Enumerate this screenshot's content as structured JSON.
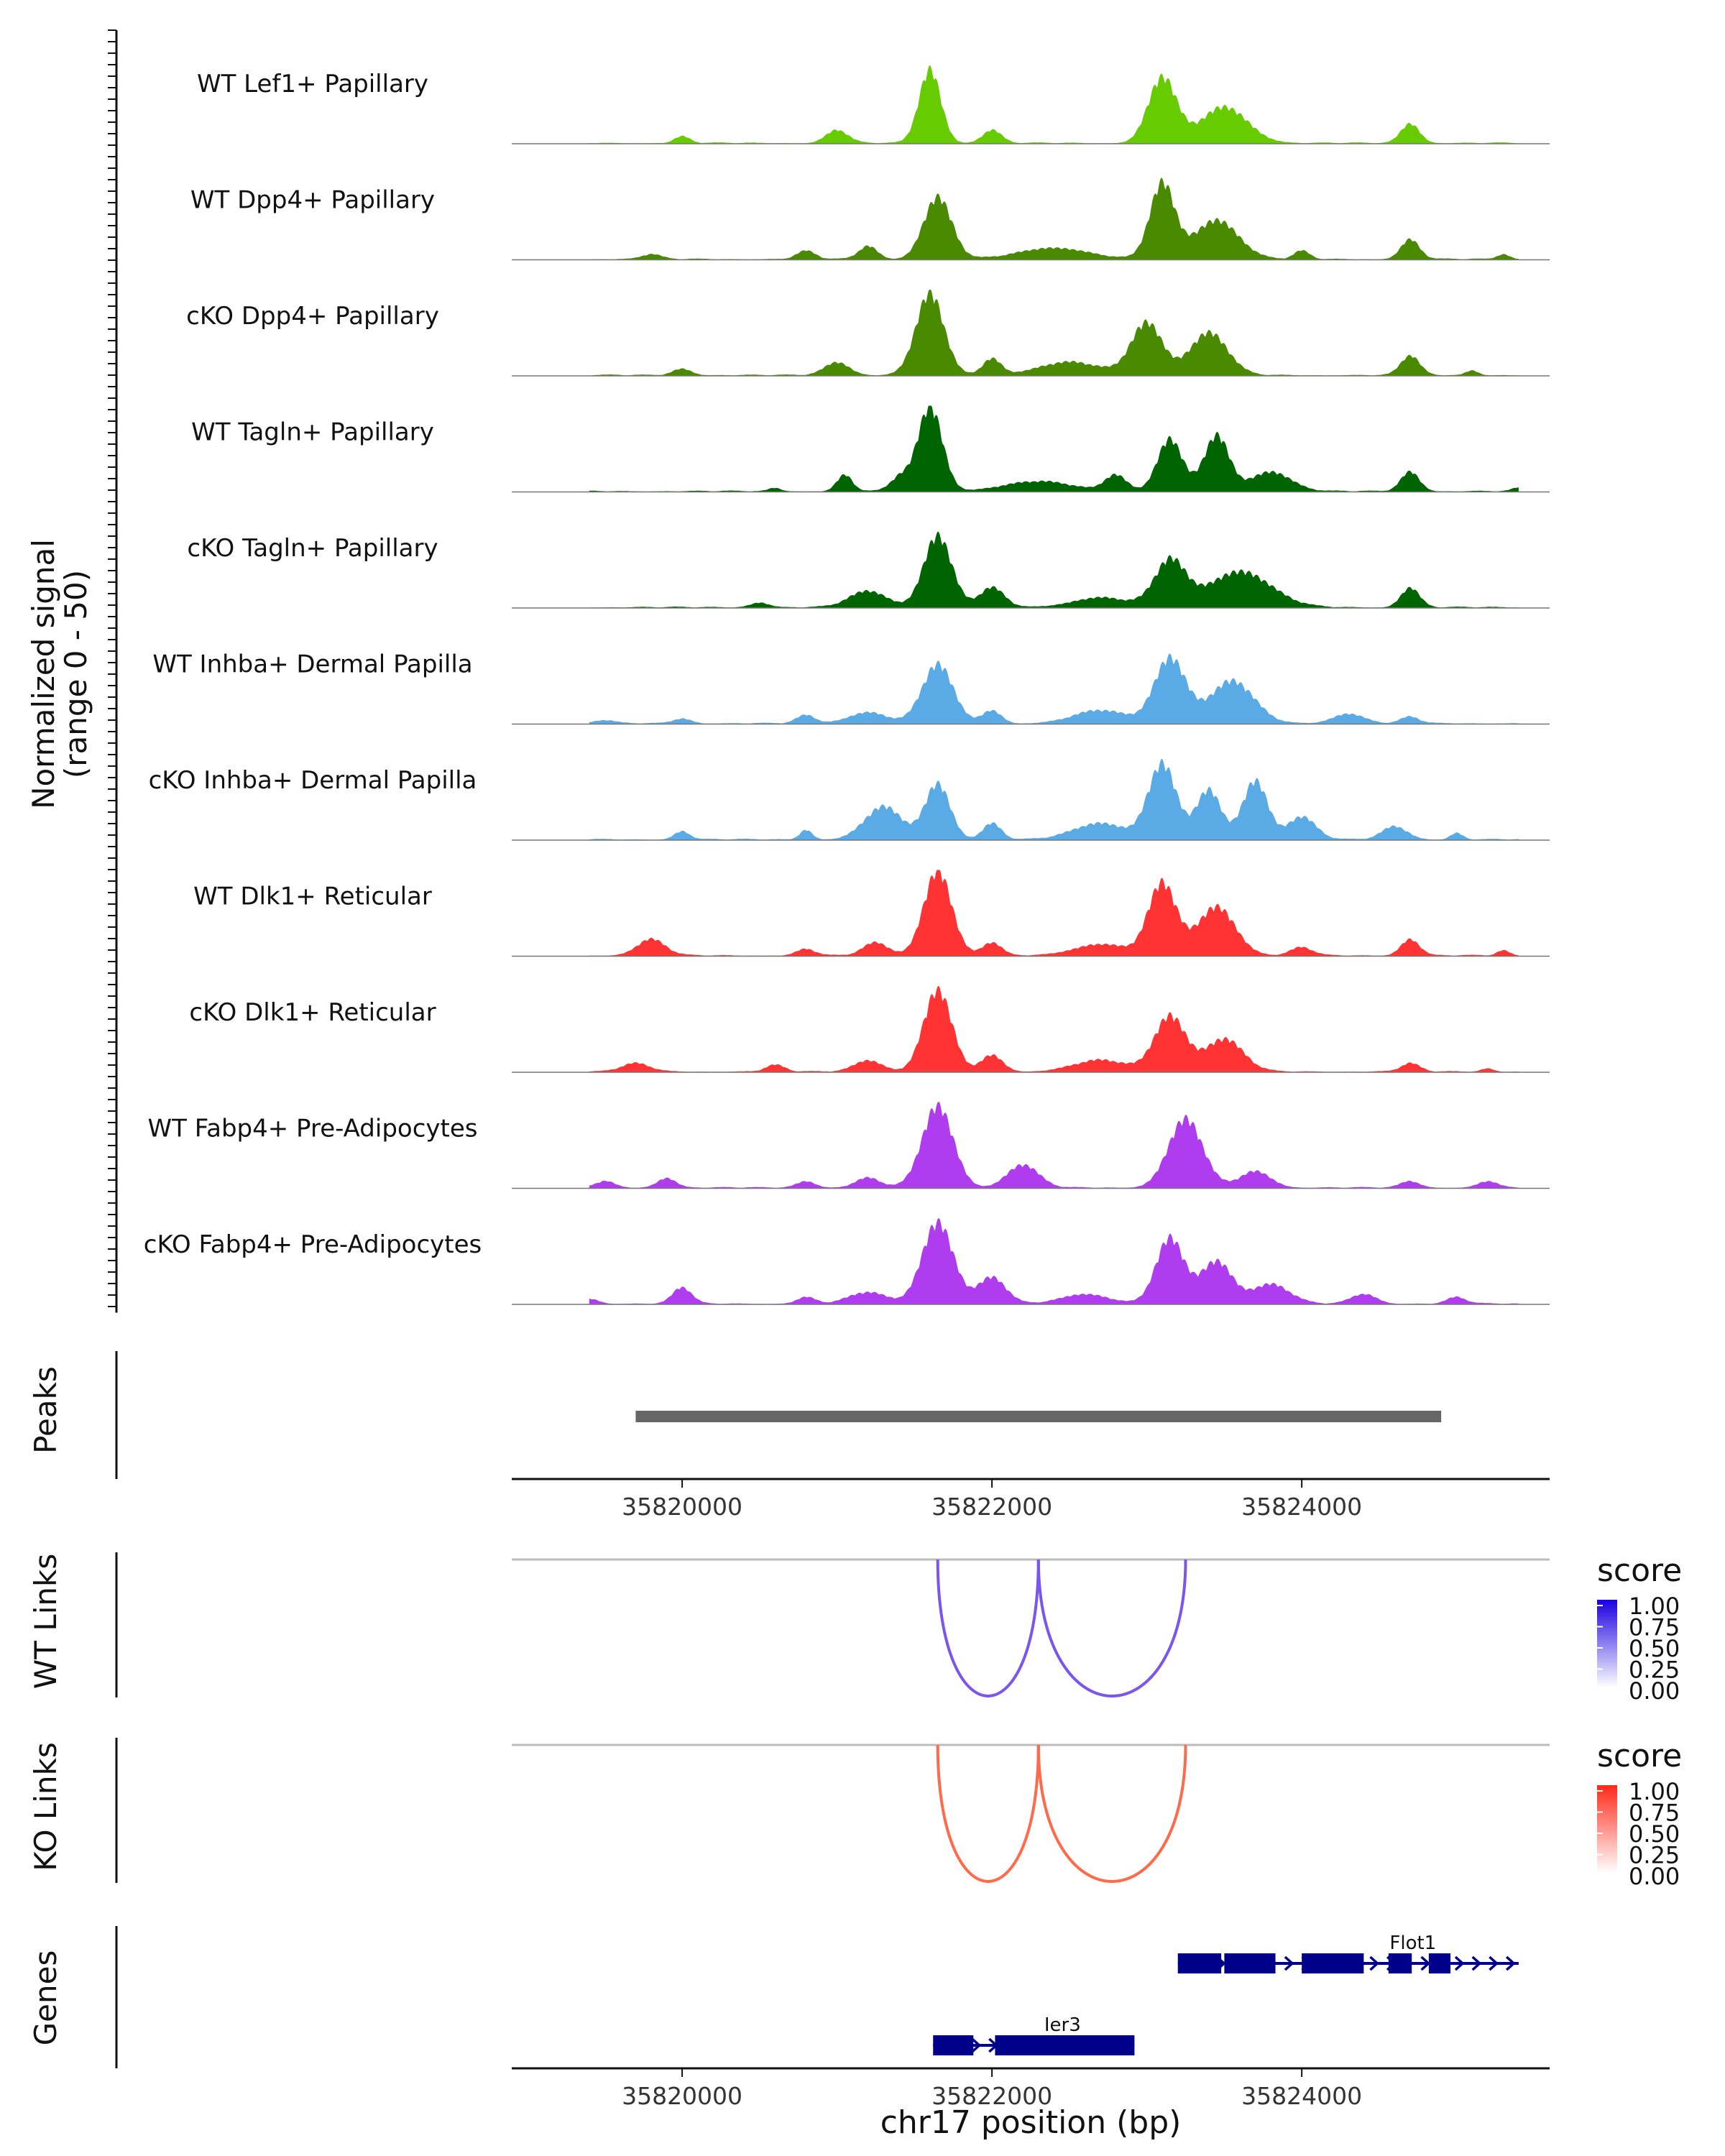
{
  "chart_data": {
    "type": "area",
    "title": "",
    "region": "chr17:35818900-35825600",
    "xlim": [
      35818900,
      35825600
    ],
    "xticks": [
      35820000,
      35822000,
      35824000
    ],
    "xlabel": "chr17 position (bp)",
    "coverage": {
      "ylabel_line1": "Normalized signal",
      "ylabel_line2": "(range 0 - 50)",
      "ylim": [
        0,
        50
      ],
      "tracks": [
        {
          "name": "WT Lef1+ Papillary",
          "color": "#66cc00",
          "peaks": [
            [
              35820000,
              4,
              50
            ],
            [
              35821000,
              8,
              70
            ],
            [
              35821600,
              45,
              70
            ],
            [
              35822000,
              8,
              60
            ],
            [
              35823100,
              40,
              90
            ],
            [
              35823500,
              22,
              150
            ],
            [
              35824700,
              12,
              60
            ]
          ]
        },
        {
          "name": "WT Dpp4+ Papillary",
          "color": "#4a8a00",
          "peaks": [
            [
              35819800,
              3,
              60
            ],
            [
              35820800,
              5,
              60
            ],
            [
              35821200,
              8,
              60
            ],
            [
              35821650,
              38,
              90
            ],
            [
              35822400,
              7,
              220
            ],
            [
              35823100,
              46,
              80
            ],
            [
              35823450,
              24,
              140
            ],
            [
              35824000,
              5,
              50
            ],
            [
              35824700,
              12,
              60
            ],
            [
              35825300,
              3,
              40
            ]
          ]
        },
        {
          "name": "cKO Dpp4+ Papillary",
          "color": "#4a8a00",
          "peaks": [
            [
              35820000,
              4,
              60
            ],
            [
              35821000,
              8,
              80
            ],
            [
              35821600,
              50,
              90
            ],
            [
              35822000,
              10,
              60
            ],
            [
              35822500,
              8,
              200
            ],
            [
              35823000,
              32,
              100
            ],
            [
              35823400,
              26,
              120
            ],
            [
              35824700,
              12,
              60
            ],
            [
              35825100,
              3,
              40
            ]
          ]
        },
        {
          "name": "WT Tagln+ Papillary",
          "color": "#006400",
          "peaks": [
            [
              35820600,
              2,
              40
            ],
            [
              35821050,
              10,
              50
            ],
            [
              35821400,
              8,
              60
            ],
            [
              35821600,
              52,
              80
            ],
            [
              35822300,
              6,
              220
            ],
            [
              35822800,
              10,
              70
            ],
            [
              35823150,
              32,
              80
            ],
            [
              35823450,
              34,
              80
            ],
            [
              35823800,
              12,
              130
            ],
            [
              35824700,
              12,
              60
            ],
            [
              35825400,
              2,
              40
            ]
          ]
        },
        {
          "name": "cKO Tagln+ Papillary",
          "color": "#006400",
          "peaks": [
            [
              35820500,
              3,
              60
            ],
            [
              35821200,
              10,
              120
            ],
            [
              35821650,
              44,
              90
            ],
            [
              35822000,
              12,
              80
            ],
            [
              35822700,
              6,
              180
            ],
            [
              35823150,
              28,
              100
            ],
            [
              35823600,
              22,
              200
            ],
            [
              35824700,
              12,
              60
            ]
          ]
        },
        {
          "name": "WT Inhba+ Dermal Papilla",
          "color": "#5aaae6",
          "peaks": [
            [
              35819500,
              2,
              60
            ],
            [
              35820000,
              3,
              60
            ],
            [
              35820800,
              5,
              60
            ],
            [
              35821200,
              7,
              120
            ],
            [
              35821650,
              36,
              100
            ],
            [
              35822000,
              8,
              60
            ],
            [
              35822700,
              8,
              170
            ],
            [
              35823150,
              40,
              100
            ],
            [
              35823550,
              26,
              140
            ],
            [
              35824300,
              6,
              100
            ],
            [
              35824700,
              4,
              60
            ]
          ]
        },
        {
          "name": "cKO Inhba+ Dermal Papilla",
          "color": "#5aaae6",
          "peaks": [
            [
              35820000,
              5,
              50
            ],
            [
              35820800,
              6,
              40
            ],
            [
              35821300,
              20,
              120
            ],
            [
              35821650,
              34,
              80
            ],
            [
              35822000,
              10,
              60
            ],
            [
              35822700,
              10,
              170
            ],
            [
              35823100,
              46,
              90
            ],
            [
              35823400,
              30,
              80
            ],
            [
              35823700,
              36,
              80
            ],
            [
              35824000,
              14,
              90
            ],
            [
              35824600,
              8,
              80
            ],
            [
              35825000,
              4,
              40
            ]
          ]
        },
        {
          "name": "WT Dlk1+ Reticular",
          "color": "#ff3333",
          "peaks": [
            [
              35819800,
              10,
              90
            ],
            [
              35820800,
              4,
              60
            ],
            [
              35821250,
              8,
              80
            ],
            [
              35821650,
              52,
              90
            ],
            [
              35822000,
              8,
              60
            ],
            [
              35822700,
              7,
              170
            ],
            [
              35823100,
              44,
              90
            ],
            [
              35823450,
              30,
              120
            ],
            [
              35824000,
              5,
              70
            ],
            [
              35824700,
              10,
              60
            ],
            [
              35825300,
              3,
              40
            ]
          ]
        },
        {
          "name": "cKO Dlk1+ Reticular",
          "color": "#ff3333",
          "peaks": [
            [
              35819700,
              5,
              90
            ],
            [
              35820600,
              4,
              60
            ],
            [
              35821200,
              7,
              90
            ],
            [
              35821650,
              50,
              90
            ],
            [
              35822000,
              10,
              70
            ],
            [
              35822700,
              7,
              170
            ],
            [
              35823150,
              34,
              100
            ],
            [
              35823500,
              20,
              120
            ],
            [
              35824700,
              5,
              60
            ],
            [
              35825200,
              2,
              40
            ]
          ]
        },
        {
          "name": "WT Fabp4+ Pre-Adipocytes",
          "color": "#b03cf0",
          "peaks": [
            [
              35819500,
              4,
              60
            ],
            [
              35819900,
              6,
              60
            ],
            [
              35820800,
              4,
              60
            ],
            [
              35821200,
              6,
              80
            ],
            [
              35821650,
              50,
              100
            ],
            [
              35822200,
              14,
              100
            ],
            [
              35823250,
              42,
              110
            ],
            [
              35823700,
              10,
              100
            ],
            [
              35824700,
              4,
              60
            ],
            [
              35825200,
              4,
              60
            ]
          ]
        },
        {
          "name": "cKO Fabp4+ Pre-Adipocytes",
          "color": "#b03cf0",
          "peaks": [
            [
              35819400,
              3,
              60
            ],
            [
              35820000,
              10,
              60
            ],
            [
              35820800,
              4,
              60
            ],
            [
              35821200,
              7,
              120
            ],
            [
              35821650,
              50,
              100
            ],
            [
              35822000,
              16,
              90
            ],
            [
              35822600,
              6,
              150
            ],
            [
              35823150,
              40,
              90
            ],
            [
              35823450,
              26,
              100
            ],
            [
              35823800,
              12,
              120
            ],
            [
              35824400,
              6,
              80
            ],
            [
              35825000,
              4,
              60
            ]
          ]
        }
      ]
    },
    "peaks_track": {
      "label": "Peaks",
      "intervals": [
        [
          35819700,
          35824900
        ]
      ],
      "color": "#666666"
    },
    "wt_links": {
      "label": "WT Links",
      "color": "#7b55f0",
      "links": [
        [
          35821650,
          35822300
        ],
        [
          35822300,
          35823250
        ]
      ],
      "legend_title": "score",
      "legend_ticks": [
        "1.00",
        "0.75",
        "0.50",
        "0.25",
        "0.00"
      ],
      "legend_low": "#ffffff",
      "legend_high": "#1a00e0"
    },
    "ko_links": {
      "label": "KO Links",
      "color": "#ff6a4a",
      "links": [
        [
          35821650,
          35822300
        ],
        [
          35822300,
          35823250
        ]
      ],
      "legend_title": "score",
      "legend_ticks": [
        "1.00",
        "0.75",
        "0.50",
        "0.25",
        "0.00"
      ],
      "legend_low": "#ffffff",
      "legend_high": "#ff2a1a"
    },
    "genes": {
      "label": "Genes",
      "color": "#00008b",
      "items": [
        {
          "name": "Flot1",
          "start": 35823200,
          "end": 35825400,
          "row": 0,
          "exons": [
            [
              35823200,
              35823480
            ],
            [
              35823500,
              35823830
            ],
            [
              35824000,
              35824400
            ],
            [
              35824560,
              35824710
            ],
            [
              35824820,
              35824960
            ]
          ]
        },
        {
          "name": "Ier3",
          "start": 35821620,
          "end": 35822920,
          "row": 1,
          "exons": [
            [
              35821620,
              35821880
            ],
            [
              35822020,
              35822920
            ]
          ]
        }
      ]
    }
  }
}
